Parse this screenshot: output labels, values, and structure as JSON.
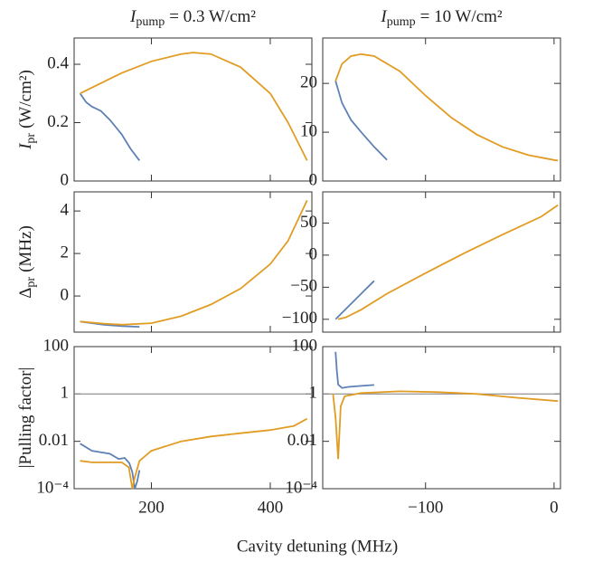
{
  "xlabel": "Cavity detuning (MHz)",
  "chart_data": [
    {
      "type": "line",
      "title": {
        "symbol": "I",
        "sub": "pump",
        "rest": "= 0.3 W/cm²"
      },
      "ylabel": {
        "symbol": "I",
        "sub": "pr",
        "rest": "(W/cm²)"
      },
      "xlim": [
        70,
        470
      ],
      "xticks": [
        200,
        400
      ],
      "ylim": [
        0,
        0.49
      ],
      "yticks": [
        0,
        0.2,
        0.4
      ],
      "series": [
        {
          "color": "#5e81b5",
          "x": [
            80,
            90,
            100,
            115,
            130,
            150,
            165,
            180
          ],
          "values": [
            0.3,
            0.27,
            0.255,
            0.24,
            0.21,
            0.16,
            0.11,
            0.07
          ]
        },
        {
          "color": "#e19c24",
          "x": [
            80,
            100,
            150,
            200,
            250,
            270,
            300,
            350,
            400,
            430,
            462
          ],
          "values": [
            0.3,
            0.32,
            0.37,
            0.41,
            0.435,
            0.44,
            0.435,
            0.39,
            0.3,
            0.2,
            0.07
          ]
        }
      ]
    },
    {
      "type": "line",
      "title": {
        "symbol": "I",
        "sub": "pump",
        "rest": "= 10 W/cm²"
      },
      "xlim": [
        -180,
        5
      ],
      "xticks": [
        {
          "value": -100,
          "label": "−100"
        },
        0
      ],
      "ylim": [
        0,
        29.3
      ],
      "yticks": [
        0,
        10,
        20
      ],
      "series": [
        {
          "color": "#5e81b5",
          "x": [
            -170,
            -165,
            -158,
            -150,
            -140,
            -130
          ],
          "values": [
            20.5,
            16,
            12.5,
            10,
            7,
            4.3
          ]
        },
        {
          "color": "#e19c24",
          "x": [
            -170,
            -165,
            -158,
            -150,
            -140,
            -120,
            -100,
            -80,
            -60,
            -40,
            -20,
            0,
            3
          ],
          "values": [
            20.5,
            24,
            25.6,
            26,
            25.6,
            22.5,
            17.5,
            13,
            9.5,
            7,
            5.3,
            4.3,
            4.2
          ]
        }
      ]
    },
    {
      "type": "line",
      "ylabel": {
        "symbol": "Δ",
        "sub": "pr",
        "rest": "(MHz)"
      },
      "xlim": [
        70,
        470
      ],
      "xticks": [
        200,
        400
      ],
      "ylim": [
        -1.7,
        4.9
      ],
      "yticks": [
        0,
        2,
        4
      ],
      "series": [
        {
          "color": "#5e81b5",
          "x": [
            80,
            120,
            150,
            180
          ],
          "values": [
            -1.2,
            -1.35,
            -1.42,
            -1.45
          ]
        },
        {
          "color": "#e19c24",
          "x": [
            80,
            120,
            150,
            200,
            250,
            300,
            350,
            400,
            430,
            462
          ],
          "values": [
            -1.2,
            -1.3,
            -1.35,
            -1.28,
            -0.95,
            -0.4,
            0.35,
            1.5,
            2.6,
            4.5
          ]
        }
      ]
    },
    {
      "type": "line",
      "xlim": [
        -180,
        5
      ],
      "xticks": [
        {
          "value": -100,
          "label": "−100"
        },
        0
      ],
      "ylim": [
        -120,
        98.6
      ],
      "yticks": [
        {
          "value": -100,
          "label": "−100"
        },
        {
          "value": -50,
          "label": "−50"
        },
        0,
        50
      ],
      "series": [
        {
          "color": "#5e81b5",
          "x": [
            -170,
            -160,
            -150,
            -140
          ],
          "values": [
            -100,
            -80,
            -60,
            -40
          ]
        },
        {
          "color": "#e19c24",
          "x": [
            -168,
            -162,
            -150,
            -130,
            -100,
            -70,
            -40,
            -10,
            3
          ],
          "values": [
            -100,
            -97,
            -85,
            -60,
            -28,
            3,
            32,
            60,
            78
          ]
        }
      ]
    },
    {
      "type": "line",
      "ylabel": {
        "text": "|Pulling factor|"
      },
      "yscale": "log",
      "hline": 1,
      "xlim": [
        70,
        470
      ],
      "xticks": [
        200,
        400
      ],
      "ylim": [
        0.0001,
        100
      ],
      "yticks": [
        {
          "value": 0.0001,
          "label": "10⁻⁴"
        },
        0.01,
        1,
        100
      ],
      "series": [
        {
          "color": "#5e81b5",
          "x": [
            80,
            100,
            130,
            145,
            155,
            163,
            168,
            172,
            176,
            180
          ],
          "values": [
            0.008,
            0.004,
            0.003,
            0.0018,
            0.002,
            0.0012,
            0.0005,
            0.0001,
            0.0002,
            0.0006
          ]
        },
        {
          "color": "#e19c24",
          "x": [
            80,
            100,
            150,
            162,
            168,
            172,
            180,
            200,
            250,
            300,
            350,
            400,
            440,
            462
          ],
          "values": [
            0.0015,
            0.0013,
            0.0013,
            0.0008,
            0.0001,
            0.0003,
            0.0015,
            0.004,
            0.01,
            0.016,
            0.022,
            0.03,
            0.045,
            0.09
          ]
        }
      ]
    },
    {
      "type": "line",
      "yscale": "log",
      "hline": 1,
      "xlim": [
        -180,
        5
      ],
      "xticks": [
        {
          "value": -100,
          "label": "−100"
        },
        0
      ],
      "ylim": [
        0.0001,
        100
      ],
      "yticks": [
        {
          "value": 0.0001,
          "label": "10⁻⁴"
        },
        0.01,
        1,
        100
      ],
      "series": [
        {
          "color": "#5e81b5",
          "x": [
            -170,
            -169,
            -168,
            -165,
            -160,
            -150,
            -140
          ],
          "values": [
            60,
            10,
            2.5,
            1.8,
            2,
            2.2,
            2.4
          ]
        },
        {
          "color": "#e19c24",
          "x": [
            -172,
            -170,
            -168,
            -166,
            -163,
            -150,
            -120,
            -90,
            -60,
            -30,
            3
          ],
          "values": [
            1,
            0.1,
            0.0018,
            0.3,
            0.8,
            1.1,
            1.3,
            1.2,
            1,
            0.7,
            0.5
          ]
        }
      ]
    }
  ]
}
